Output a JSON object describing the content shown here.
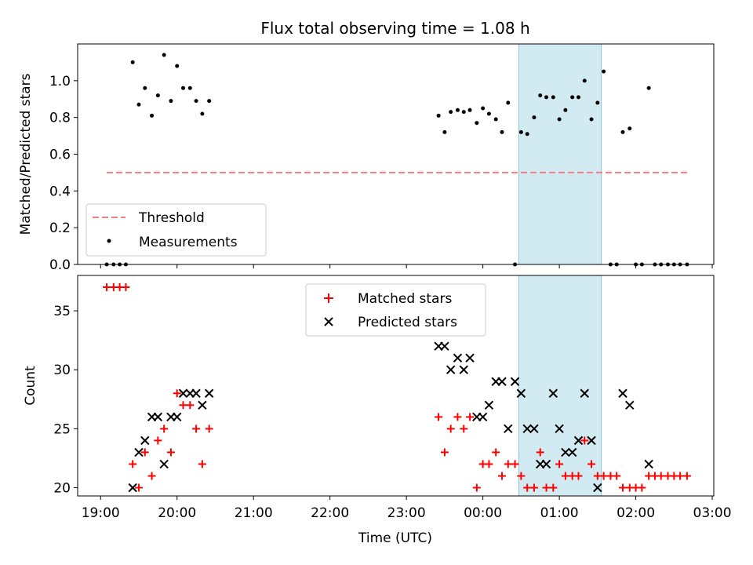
{
  "title": "Flux total observing time = 1.08 h",
  "colors": {
    "threshold": "#f08080",
    "measurement": "#000000",
    "matched": "#ff0000",
    "predicted": "#000000",
    "shade": "#add8e6"
  },
  "chart_data": [
    {
      "type": "scatter",
      "ylabel": "Matched/Predicted stars",
      "xlim": [
        18.7,
        27.02
      ],
      "ylim": [
        0,
        1.2
      ],
      "yticks": [
        0.0,
        0.2,
        0.4,
        0.6,
        0.8,
        1.0
      ],
      "ytick_labels": [
        "0.0",
        "0.2",
        "0.4",
        "0.6",
        "0.8",
        "1.0"
      ],
      "shaded_region": {
        "x_start": 24.47,
        "x_end": 25.55
      },
      "threshold": {
        "y": 0.5,
        "x_start": 19.08,
        "x_end": 26.67
      },
      "legend": {
        "position": "lower-left",
        "entries": [
          "Threshold",
          "Measurements"
        ]
      },
      "series": [
        {
          "name": "Measurements",
          "points": [
            [
              19.08,
              0.0
            ],
            [
              19.17,
              0.0
            ],
            [
              19.25,
              0.0
            ],
            [
              19.33,
              0.0
            ],
            [
              19.42,
              1.1
            ],
            [
              19.5,
              0.87
            ],
            [
              19.58,
              0.96
            ],
            [
              19.67,
              0.81
            ],
            [
              19.75,
              0.92
            ],
            [
              19.83,
              1.14
            ],
            [
              19.92,
              0.89
            ],
            [
              20.0,
              1.08
            ],
            [
              20.08,
              0.96
            ],
            [
              20.17,
              0.96
            ],
            [
              20.25,
              0.89
            ],
            [
              20.33,
              0.82
            ],
            [
              20.42,
              0.89
            ],
            [
              23.42,
              0.81
            ],
            [
              23.5,
              0.72
            ],
            [
              23.58,
              0.83
            ],
            [
              23.67,
              0.84
            ],
            [
              23.75,
              0.83
            ],
            [
              23.83,
              0.84
            ],
            [
              23.92,
              0.77
            ],
            [
              24.0,
              0.85
            ],
            [
              24.08,
              0.82
            ],
            [
              24.17,
              0.79
            ],
            [
              24.25,
              0.72
            ],
            [
              24.33,
              0.88
            ],
            [
              24.42,
              0.0
            ],
            [
              24.5,
              0.72
            ],
            [
              24.58,
              0.71
            ],
            [
              24.67,
              0.8
            ],
            [
              24.75,
              0.92
            ],
            [
              24.83,
              0.91
            ],
            [
              24.92,
              0.91
            ],
            [
              25.0,
              0.79
            ],
            [
              25.08,
              0.84
            ],
            [
              25.17,
              0.91
            ],
            [
              25.25,
              0.91
            ],
            [
              25.33,
              1.0
            ],
            [
              25.42,
              0.79
            ],
            [
              25.5,
              0.88
            ],
            [
              25.58,
              1.05
            ],
            [
              25.67,
              0.0
            ],
            [
              25.75,
              0.0
            ],
            [
              25.83,
              0.72
            ],
            [
              25.92,
              0.74
            ],
            [
              26.0,
              0.0
            ],
            [
              26.08,
              0.0
            ],
            [
              26.17,
              0.96
            ],
            [
              26.25,
              0.0
            ],
            [
              26.33,
              0.0
            ],
            [
              26.42,
              0.0
            ],
            [
              26.5,
              0.0
            ],
            [
              26.58,
              0.0
            ],
            [
              26.67,
              0.0
            ]
          ]
        }
      ]
    },
    {
      "type": "scatter",
      "xlabel": "Time (UTC)",
      "ylabel": "Count",
      "xlim": [
        18.7,
        27.02
      ],
      "ylim": [
        19.3,
        38.0
      ],
      "yticks": [
        20,
        25,
        30,
        35
      ],
      "ytick_labels": [
        "20",
        "25",
        "30",
        "35"
      ],
      "xticks": [
        19,
        20,
        21,
        22,
        23,
        24,
        25,
        26,
        27
      ],
      "xtick_labels": [
        "19:00",
        "20:00",
        "21:00",
        "22:00",
        "23:00",
        "00:00",
        "01:00",
        "02:00",
        "03:00"
      ],
      "shaded_region": {
        "x_start": 24.47,
        "x_end": 25.55
      },
      "legend": {
        "position": "upper-center",
        "entries": [
          "Matched stars",
          "Predicted stars"
        ]
      },
      "series": [
        {
          "name": "Matched stars",
          "marker": "plus",
          "points": [
            [
              19.08,
              37
            ],
            [
              19.17,
              37
            ],
            [
              19.25,
              37
            ],
            [
              19.33,
              37
            ],
            [
              19.42,
              22
            ],
            [
              19.5,
              20
            ],
            [
              19.58,
              23
            ],
            [
              19.67,
              21
            ],
            [
              19.75,
              24
            ],
            [
              19.83,
              25
            ],
            [
              19.92,
              23
            ],
            [
              20.0,
              28
            ],
            [
              20.08,
              27
            ],
            [
              20.17,
              27
            ],
            [
              20.25,
              25
            ],
            [
              20.33,
              22
            ],
            [
              20.42,
              25
            ],
            [
              23.42,
              26
            ],
            [
              23.5,
              23
            ],
            [
              23.58,
              25
            ],
            [
              23.67,
              26
            ],
            [
              23.75,
              25
            ],
            [
              23.83,
              26
            ],
            [
              23.92,
              20
            ],
            [
              24.0,
              22
            ],
            [
              24.08,
              22
            ],
            [
              24.17,
              23
            ],
            [
              24.25,
              21
            ],
            [
              24.33,
              22
            ],
            [
              24.42,
              22
            ],
            [
              24.5,
              21
            ],
            [
              24.58,
              20
            ],
            [
              24.67,
              20
            ],
            [
              24.75,
              23
            ],
            [
              24.83,
              20
            ],
            [
              24.92,
              20
            ],
            [
              25.0,
              22
            ],
            [
              25.08,
              21
            ],
            [
              25.17,
              21
            ],
            [
              25.25,
              21
            ],
            [
              25.33,
              24
            ],
            [
              25.42,
              22
            ],
            [
              25.5,
              21
            ],
            [
              25.58,
              21
            ],
            [
              25.67,
              21
            ],
            [
              25.75,
              21
            ],
            [
              25.83,
              20
            ],
            [
              25.92,
              20
            ],
            [
              26.0,
              20
            ],
            [
              26.08,
              20
            ],
            [
              26.17,
              21
            ],
            [
              26.25,
              21
            ],
            [
              26.33,
              21
            ],
            [
              26.42,
              21
            ],
            [
              26.5,
              21
            ],
            [
              26.58,
              21
            ],
            [
              26.67,
              21
            ]
          ]
        },
        {
          "name": "Predicted stars",
          "marker": "x",
          "points": [
            [
              19.42,
              20
            ],
            [
              19.5,
              23
            ],
            [
              19.58,
              24
            ],
            [
              19.67,
              26
            ],
            [
              19.75,
              26
            ],
            [
              19.83,
              22
            ],
            [
              19.92,
              26
            ],
            [
              20.0,
              26
            ],
            [
              20.08,
              28
            ],
            [
              20.17,
              28
            ],
            [
              20.25,
              28
            ],
            [
              20.33,
              27
            ],
            [
              20.42,
              28
            ],
            [
              23.42,
              32
            ],
            [
              23.5,
              32
            ],
            [
              23.58,
              30
            ],
            [
              23.67,
              31
            ],
            [
              23.75,
              30
            ],
            [
              23.83,
              31
            ],
            [
              23.92,
              26
            ],
            [
              24.0,
              26
            ],
            [
              24.08,
              27
            ],
            [
              24.17,
              29
            ],
            [
              24.25,
              29
            ],
            [
              24.33,
              25
            ],
            [
              24.42,
              29
            ],
            [
              24.5,
              28
            ],
            [
              24.58,
              25
            ],
            [
              24.67,
              25
            ],
            [
              24.75,
              22
            ],
            [
              24.83,
              22
            ],
            [
              24.92,
              28
            ],
            [
              25.0,
              25
            ],
            [
              25.08,
              23
            ],
            [
              25.17,
              23
            ],
            [
              25.25,
              24
            ],
            [
              25.33,
              28
            ],
            [
              25.42,
              24
            ],
            [
              25.5,
              20
            ],
            [
              25.83,
              28
            ],
            [
              25.92,
              27
            ],
            [
              26.17,
              22
            ]
          ]
        }
      ]
    }
  ]
}
